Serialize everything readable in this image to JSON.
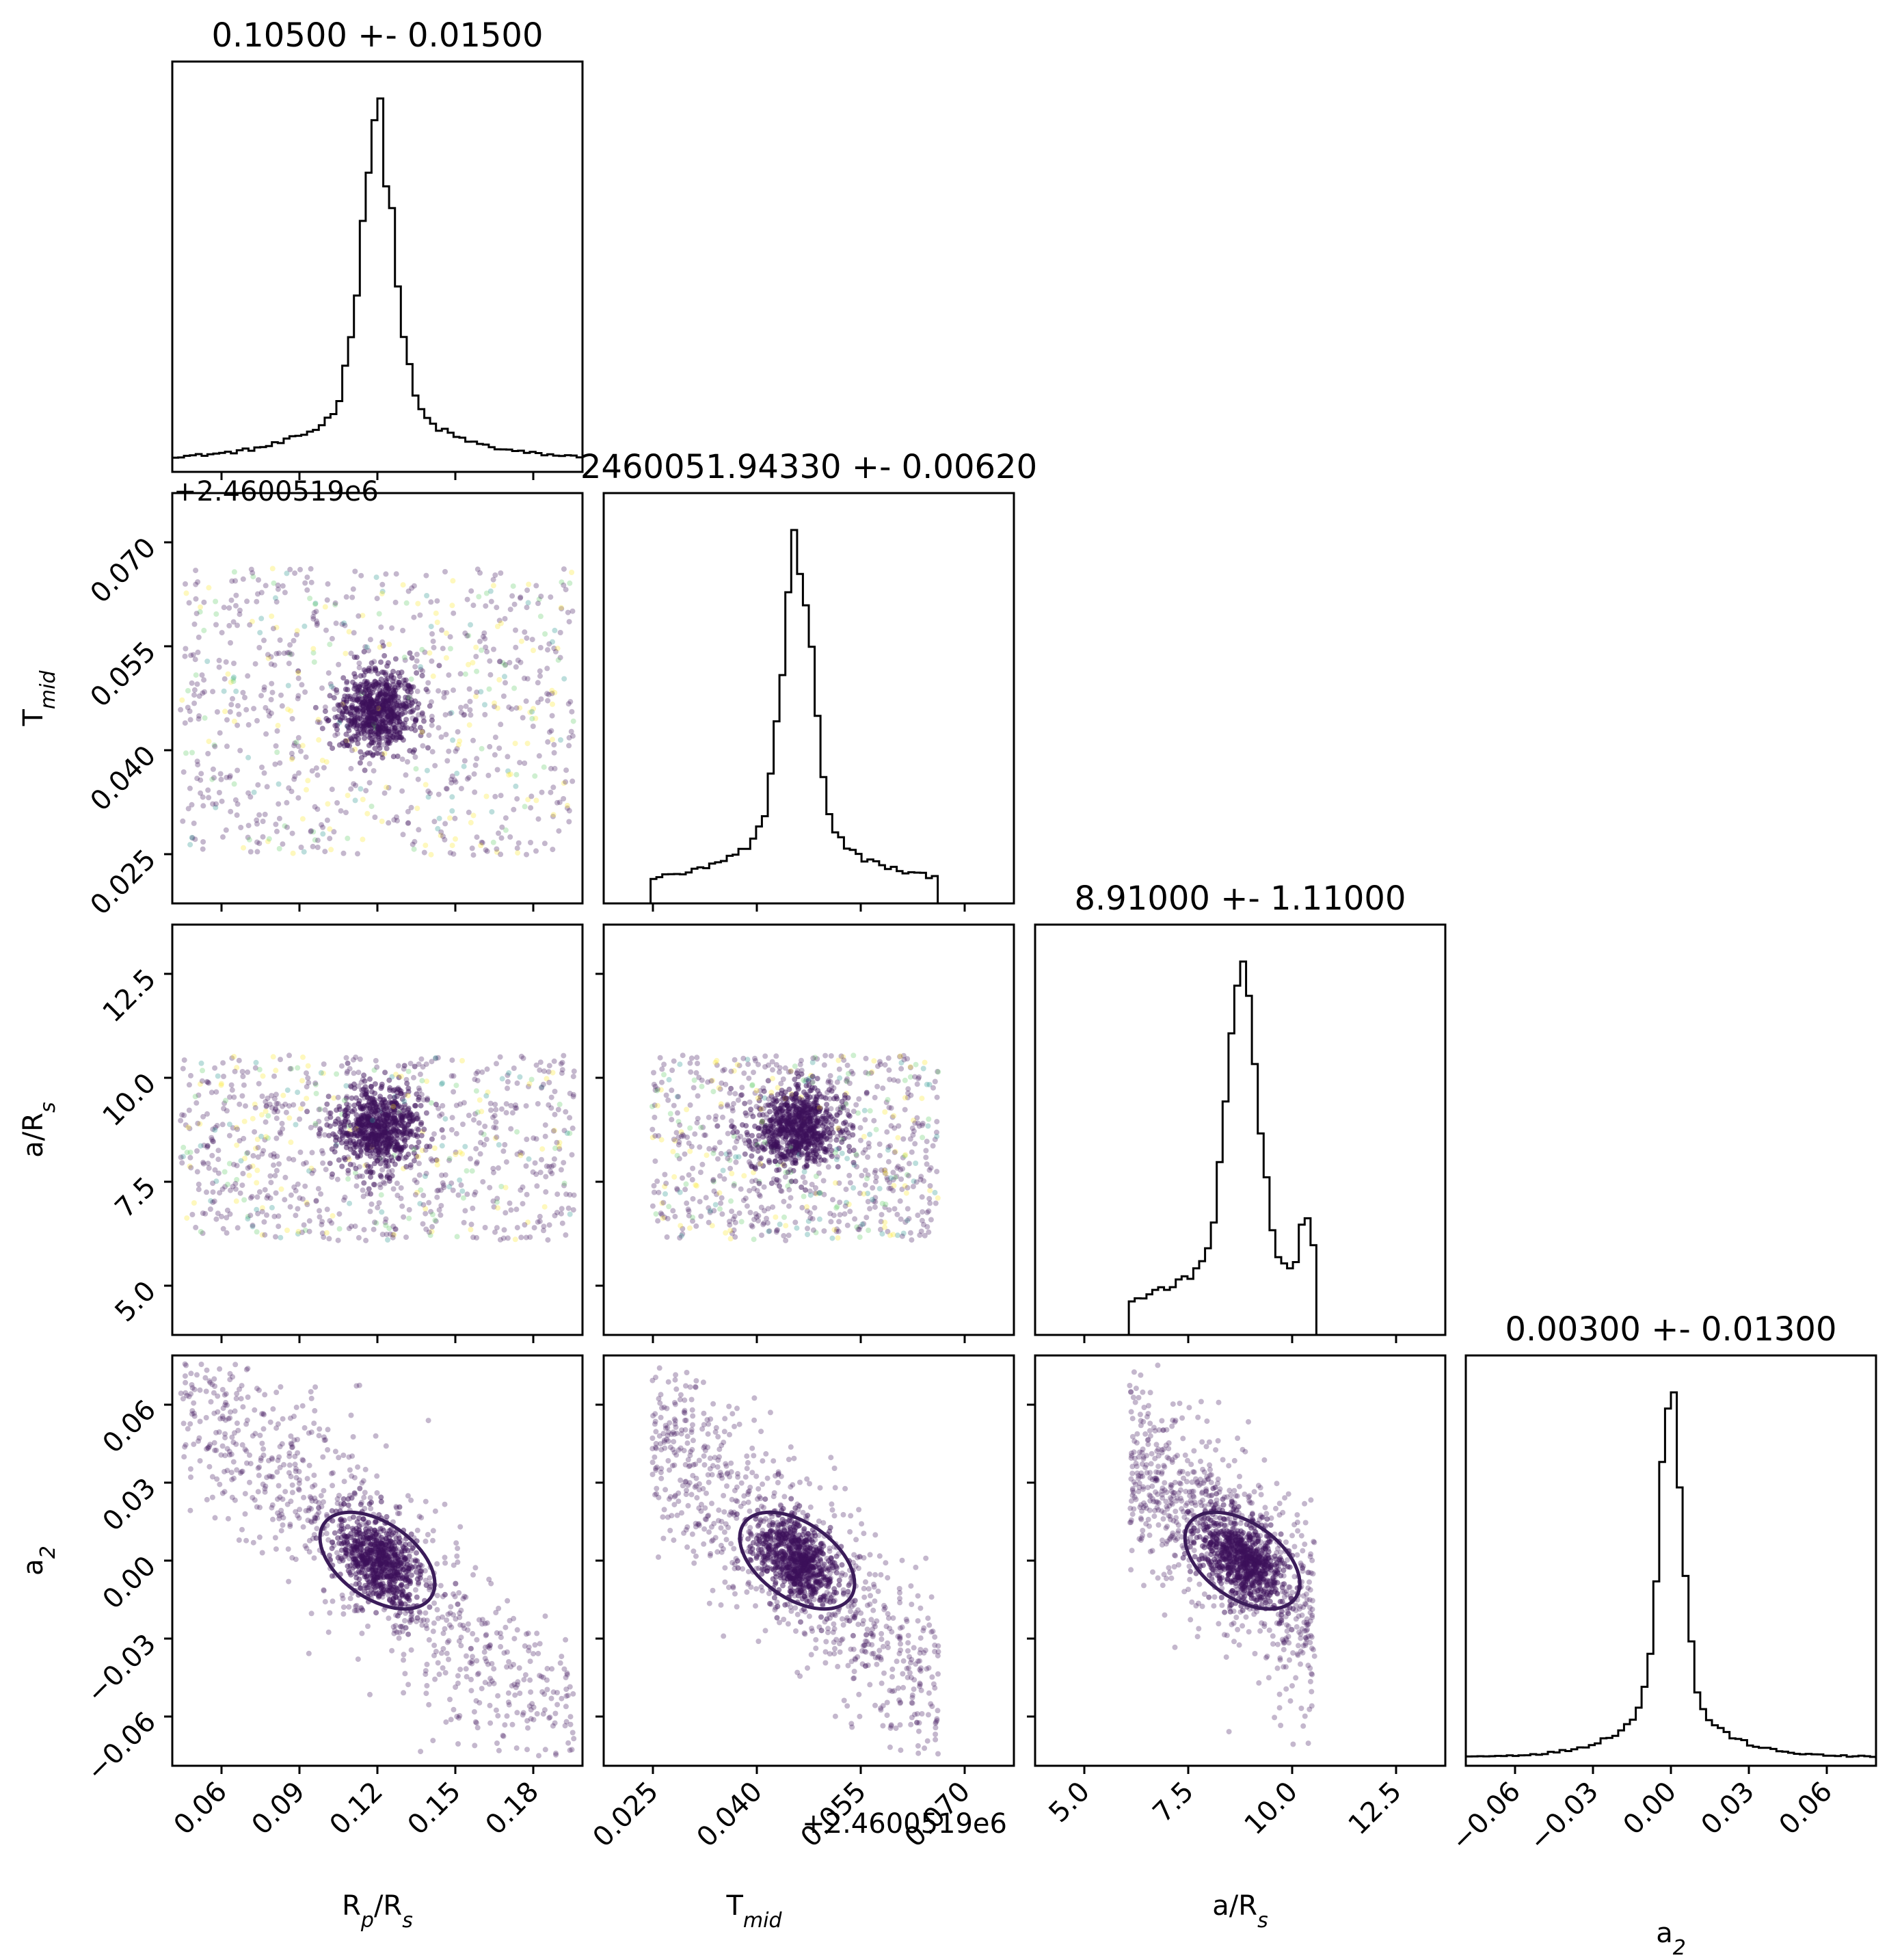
{
  "figure": {
    "type": "corner-plot",
    "parameters": [
      "R_p/R_s",
      "T_mid",
      "a/R_s",
      "a_2"
    ]
  },
  "chart_data": {
    "type": "scatter",
    "variant": "corner",
    "panels": [
      {
        "id": "rp",
        "title": "0.10500 +- 0.01500",
        "xlabel_main": "R",
        "xlabel_sub1": "p",
        "xlabel_mid": "/R",
        "xlabel_sub2": "s",
        "xlim": [
          0.03,
          0.18
        ],
        "xticks": [
          "0.06",
          "0.09",
          "0.12",
          "0.15",
          "0.18"
        ],
        "hist": {
          "peak": 0.105,
          "width": 0.006,
          "floor": 0.05,
          "lo": 0.03,
          "hi": 0.18
        }
      },
      {
        "id": "tmid",
        "title": "2460051.94330 +- 0.00620",
        "offset_label": "+2.4600519e6",
        "xlabel_main": "T",
        "xlabel_sub1": "mid",
        "xlim": [
          0.015,
          0.075
        ],
        "xticks": [
          "0.025",
          "0.040",
          "0.055",
          "0.070"
        ],
        "yticks": [
          "0.025",
          "0.040",
          "0.055",
          "0.070"
        ],
        "hist": {
          "peak": 0.0433,
          "width": 0.0022,
          "floor": 0.08,
          "lo": 0.022,
          "hi": 0.064
        }
      },
      {
        "id": "ar",
        "title": "8.91000 +- 1.11000",
        "xlabel_main": "a/R",
        "xlabel_sub1": "s",
        "xlim": [
          3.2,
          14.5
        ],
        "xticks": [
          "5.0",
          "7.5",
          "10.0",
          "12.5"
        ],
        "yticks": [
          "5.0",
          "7.5",
          "10.0",
          "12.5"
        ],
        "hist": {
          "peak": 8.91,
          "width": 0.4,
          "floor": 0.1,
          "lo": 5.8,
          "hi": 10.9,
          "second": 10.7
        }
      },
      {
        "id": "a2",
        "title": "0.00300 +- 0.01300",
        "xlabel_main": "a",
        "xlabel_sub1": "2",
        "xlim": [
          -0.062,
          0.068
        ],
        "xticks": [
          "−0.06",
          "−0.03",
          "0.00",
          "0.03",
          "0.06"
        ],
        "yticks": [
          "−0.06",
          "−0.03",
          "0.00",
          "0.03",
          "0.06"
        ],
        "hist": {
          "peak": 0.003,
          "width": 0.0035,
          "floor": 0.03,
          "lo": -0.062,
          "hi": 0.068
        }
      }
    ],
    "ylabels": [
      {
        "main": "T",
        "sub": "mid"
      },
      {
        "main": "a/R",
        "sub": "s"
      },
      {
        "main": "a",
        "sub": "2"
      }
    ],
    "colors": {
      "contour": "#3b1c5a",
      "point_main": "#3b0f5a",
      "point_alt1": "#fde725",
      "point_alt2": "#5ec962",
      "point_alt3": "#21918c",
      "axis": "#000000"
    }
  }
}
